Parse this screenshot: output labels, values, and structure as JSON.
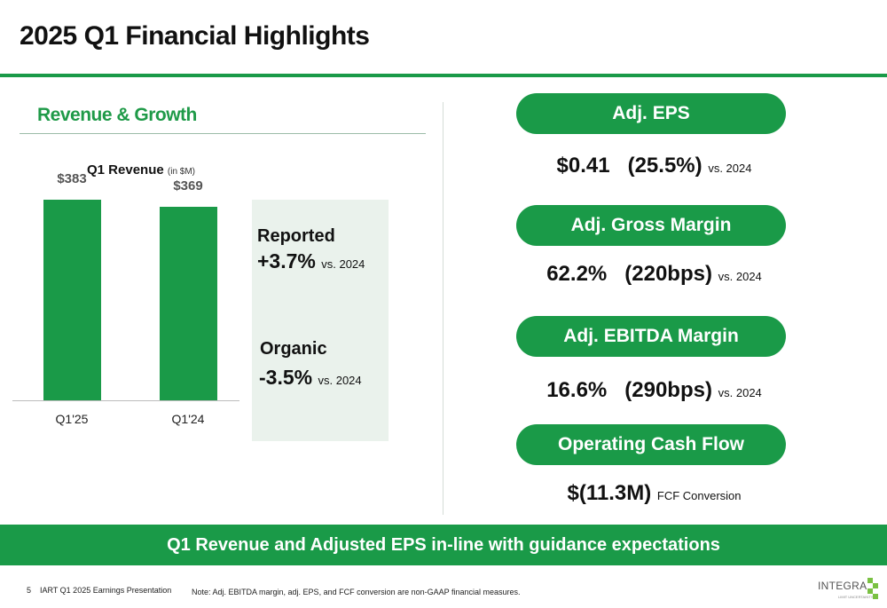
{
  "page": {
    "title": "2025 Q1 Financial Highlights",
    "section_title": "Revenue & Growth"
  },
  "chart_data": {
    "type": "bar",
    "title": "Q1 Revenue",
    "unit": "(in $M)",
    "categories": [
      "Q1'25",
      "Q1'24"
    ],
    "values": [
      383,
      369
    ],
    "data_labels": [
      "$383",
      "$369"
    ],
    "ylim": [
      0,
      540
    ],
    "grid": false
  },
  "growth": {
    "reported_label": "Reported",
    "reported_value": "+3.7%",
    "reported_vs": "vs. 2024",
    "organic_label": "Organic",
    "organic_value": "-3.5%",
    "organic_vs": "vs. 2024"
  },
  "metrics": [
    {
      "pill": "Adj. EPS",
      "value": "$0.41",
      "change": "(25.5%)",
      "suffix": "vs. 2024"
    },
    {
      "pill": "Adj. Gross Margin",
      "value": "62.2%",
      "change": "(220bps)",
      "suffix": "vs. 2024"
    },
    {
      "pill": "Adj. EBITDA Margin",
      "value": "16.6%",
      "change": "(290bps)",
      "suffix": "vs. 2024"
    },
    {
      "pill": "Operating Cash Flow",
      "value": "$(11.3M)",
      "suffix": "FCF Conversion"
    }
  ],
  "banner": "Q1 Revenue and Adjusted EPS in-line with guidance expectations",
  "footer": {
    "page_number": "5",
    "doc_name": "IART Q1 2025 Earnings Presentation",
    "note": "Note: Adj. EBITDA margin, adj. EPS, and FCF conversion are non-GAAP financial measures."
  },
  "logo": {
    "name": "INTEGRA",
    "tagline": "LIMIT UNCERTAINTY",
    "color": "#7ac143"
  },
  "colors": {
    "accent": "#1a9a48",
    "panel": "#eaf2ec"
  }
}
